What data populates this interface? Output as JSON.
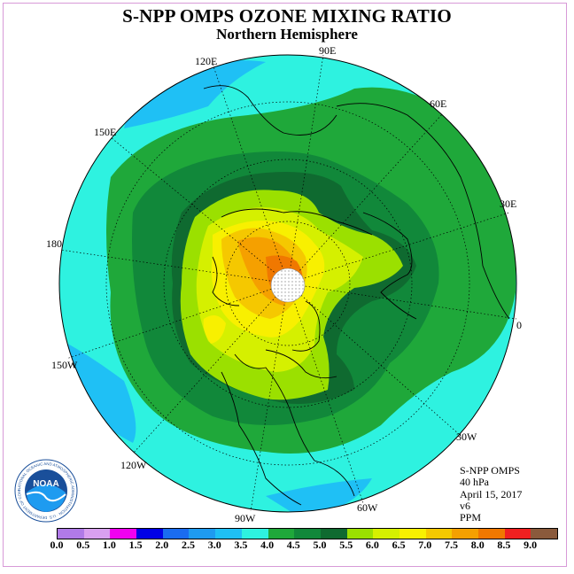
{
  "title": "S-NPP OMPS OZONE MIXING RATIO",
  "subtitle": "Northern Hemisphere",
  "longitude_labels": {
    "lon_90e": "90E",
    "lon_120e": "120E",
    "lon_60e": "60E",
    "lon_150e": "150E",
    "lon_30e": "30E",
    "lon_180": "180",
    "lon_0": "0",
    "lon_150w": "150W",
    "lon_30w": "30W",
    "lon_120w": "120W",
    "lon_60w": "60W",
    "lon_90w": "90W"
  },
  "info": {
    "instrument": "S-NPP OMPS",
    "pressure": "40 hPa",
    "date": "April 15, 2017",
    "version": "v6",
    "units": "PPM"
  },
  "logo": {
    "text": "NOAA",
    "ring_text": "NATIONAL OCEANIC AND ATMOSPHERIC ADMINISTRATION · U.S. DEPARTMENT OF COMMERCE"
  },
  "colorbar": {
    "colors": [
      "#b07ae8",
      "#d9a0f0",
      "#f000f0",
      "#0000e6",
      "#1a6cf0",
      "#1e9bf0",
      "#1fc0f5",
      "#2ef2e0",
      "#1fa83a",
      "#11883a",
      "#0f6a30",
      "#9be000",
      "#d5f000",
      "#f8f000",
      "#f5c800",
      "#f5a000",
      "#f07800",
      "#f02020",
      "#8a5a3c"
    ],
    "ticks": [
      "0.0",
      "0.5",
      "1.0",
      "1.5",
      "2.0",
      "2.5",
      "3.0",
      "3.5",
      "4.0",
      "4.5",
      "5.0",
      "5.5",
      "6.0",
      "6.5",
      "7.0",
      "7.5",
      "8.0",
      "8.5",
      "9.0"
    ]
  }
}
